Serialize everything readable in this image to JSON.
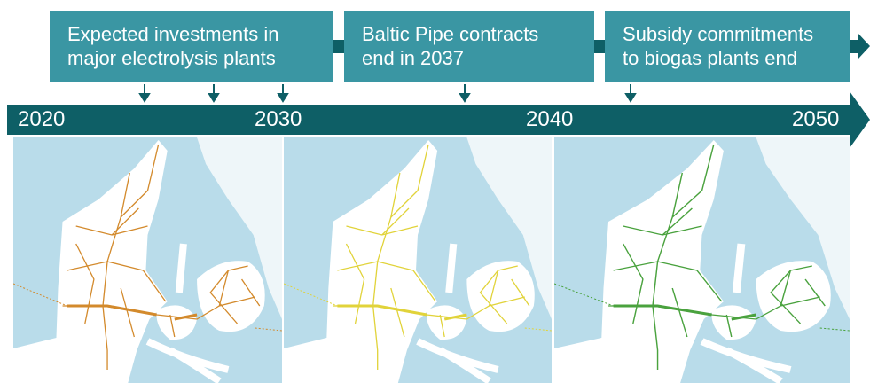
{
  "timeline": {
    "events": [
      {
        "lines": [
          "Expected investments in",
          "major electrolysis plants"
        ]
      },
      {
        "lines": [
          "Baltic Pipe contracts",
          "end in 2037"
        ]
      },
      {
        "lines": [
          "Subsidy commitments",
          "to biogas plants end"
        ]
      }
    ],
    "years": [
      "2020",
      "2030",
      "2040",
      "2050"
    ]
  }
}
